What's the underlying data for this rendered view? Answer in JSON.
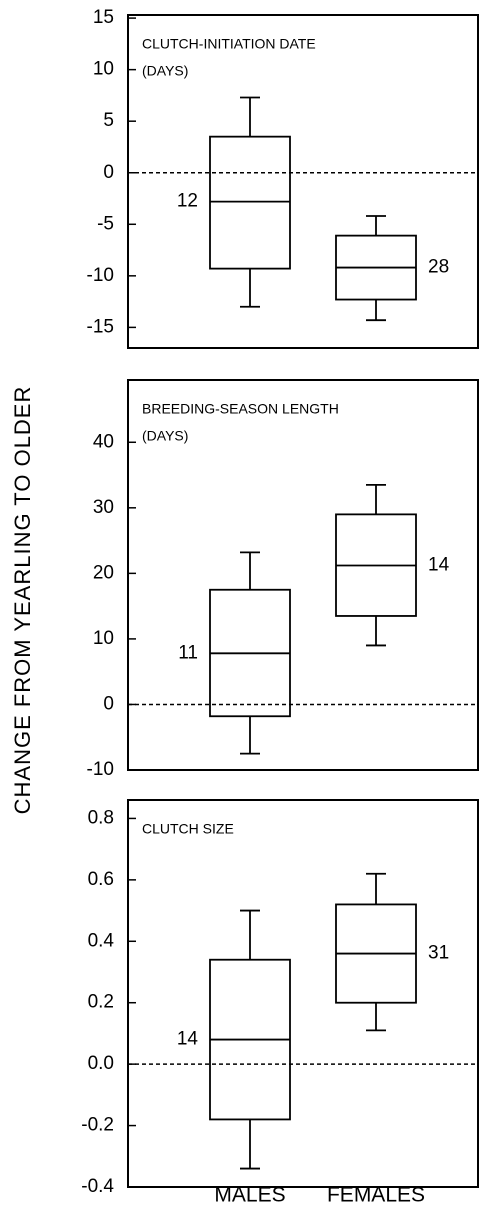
{
  "y_label": "CHANGE FROM YEARLING TO OLDER",
  "categories": [
    "MALES",
    "FEMALES"
  ],
  "chart_data": [
    {
      "type": "box",
      "title": [
        "CLUTCH-INITIATION DATE",
        "(DAYS)"
      ],
      "ylim": [
        -17,
        15.3
      ],
      "yticks": [
        15,
        10,
        5,
        0,
        -5,
        -10,
        -15
      ],
      "reference_line": 0,
      "boxes": [
        {
          "low": -13,
          "q1": -9.3,
          "median": -2.8,
          "q3": 3.5,
          "high": 7.3,
          "n": "12"
        },
        {
          "low": -14.3,
          "q1": -12.3,
          "median": -9.2,
          "q3": -6.1,
          "high": -4.2,
          "n": "28"
        }
      ]
    },
    {
      "type": "box",
      "title": [
        "BREEDING-SEASON LENGTH",
        "(DAYS)"
      ],
      "ylim": [
        -10,
        49.5
      ],
      "yticks": [
        40,
        30,
        20,
        10,
        0,
        -10
      ],
      "reference_line": 0,
      "boxes": [
        {
          "low": -7.5,
          "q1": -1.8,
          "median": 7.8,
          "q3": 17.5,
          "high": 23.2,
          "n": "11"
        },
        {
          "low": 9,
          "q1": 13.5,
          "median": 21.2,
          "q3": 29,
          "high": 33.5,
          "n": "14"
        }
      ]
    },
    {
      "type": "box",
      "title": [
        "CLUTCH SIZE"
      ],
      "ylim": [
        -0.4,
        0.86
      ],
      "yticks": [
        0.8,
        0.6,
        0.4,
        0.2,
        {
          "value": 0,
          "label": "0.0"
        },
        -0.2,
        -0.4
      ],
      "reference_line": 0,
      "boxes": [
        {
          "low": -0.34,
          "q1": -0.18,
          "median": 0.08,
          "q3": 0.34,
          "high": 0.5,
          "n": "14"
        },
        {
          "low": 0.11,
          "q1": 0.2,
          "median": 0.36,
          "q3": 0.52,
          "high": 0.62,
          "n": "31"
        }
      ]
    }
  ]
}
